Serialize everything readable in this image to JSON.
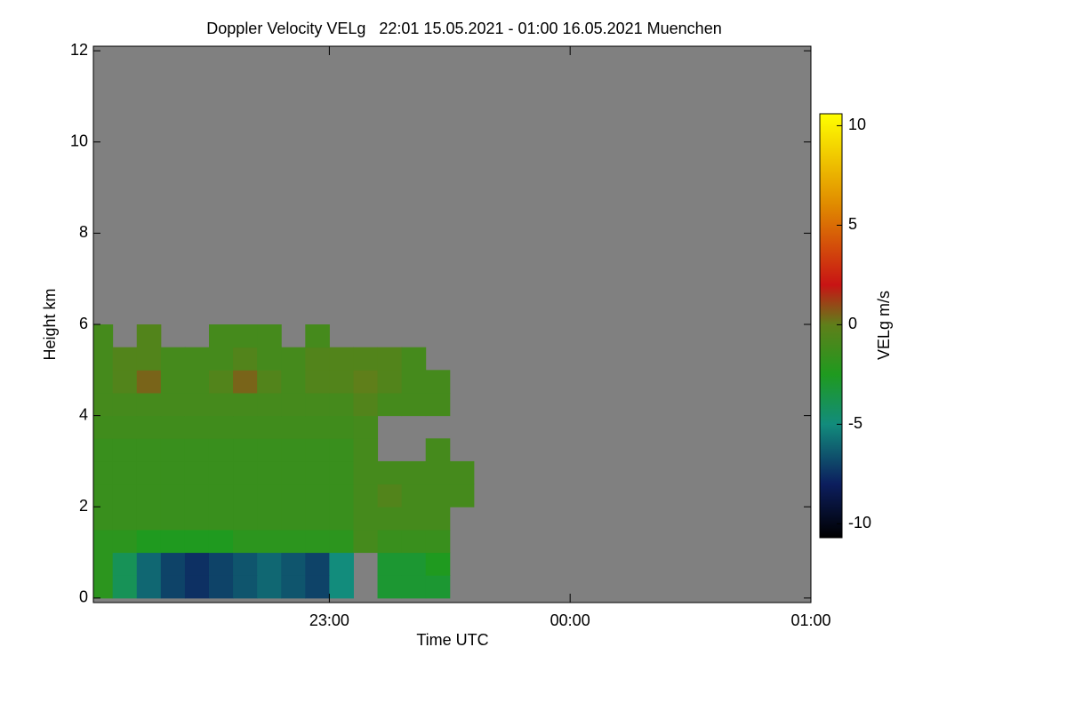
{
  "chart_data": {
    "type": "heatmap",
    "title": "Doppler Velocity VELg   22:01 15.05.2021 - 01:00 16.05.2021 Muenchen",
    "x_label": "Time UTC",
    "y_label": "Height km",
    "colorbar_label": "VELg m/s",
    "background_color": "#808080",
    "xlim": [
      22.02,
      25.0
    ],
    "xticks": [
      {
        "value": 23,
        "label": "23:00"
      },
      {
        "value": 24,
        "label": "00:00"
      },
      {
        "value": 25,
        "label": "01:00"
      }
    ],
    "ylim": [
      -0.1,
      12.1
    ],
    "yticks": [
      0,
      2,
      4,
      6,
      8,
      10,
      12
    ],
    "zlim": [
      -10.7,
      10.6
    ],
    "zticks": [
      -10,
      -5,
      0,
      5,
      10
    ],
    "colormap": [
      [
        -10.7,
        "#000000"
      ],
      [
        -8,
        "#0c1e5e"
      ],
      [
        -5,
        "#128c7c"
      ],
      [
        -2.5,
        "#1f9a1f"
      ],
      [
        0,
        "#5f7f1a"
      ],
      [
        2,
        "#c81414"
      ],
      [
        6,
        "#e08a00"
      ],
      [
        10.6,
        "#ffff00"
      ]
    ],
    "x_edges": [
      22.0,
      22.1,
      22.2,
      22.3,
      22.4,
      22.5,
      22.6,
      22.7,
      22.8,
      22.9,
      23.0,
      23.1,
      23.2,
      23.3,
      23.4,
      23.5,
      23.6,
      23.7,
      23.8,
      23.9,
      24.0,
      24.1,
      24.2,
      24.3,
      24.4,
      24.5,
      24.6,
      24.7,
      24.8,
      24.9,
      25.0
    ],
    "y_edges": [
      0,
      0.5,
      1,
      1.5,
      2,
      2.5,
      3,
      3.5,
      4,
      4.5,
      5,
      5.5,
      6
    ],
    "z": [
      [
        -2,
        -4,
        -6,
        -7,
        -7.5,
        -7,
        -6.5,
        -6,
        -6.5,
        -7,
        -5,
        null,
        -3,
        -3,
        -3,
        null,
        null,
        null,
        null,
        null,
        null,
        null,
        null,
        null,
        null,
        null,
        null,
        null,
        null,
        null
      ],
      [
        -2,
        -4,
        -6,
        -7,
        -7.5,
        -7,
        -6.5,
        -6,
        -6.5,
        -7,
        -5,
        null,
        -3,
        -3,
        -2.5,
        null,
        null,
        null,
        null,
        null,
        null,
        null,
        null,
        null,
        null,
        null,
        null,
        null,
        null,
        null
      ],
      [
        -2,
        -2,
        -2.5,
        -2.5,
        -2.5,
        -2.5,
        -2,
        -2,
        -2,
        -2,
        -2,
        -1,
        -1.5,
        -1.5,
        -1.5,
        null,
        null,
        null,
        null,
        null,
        null,
        null,
        null,
        null,
        null,
        null,
        null,
        null,
        null,
        null
      ],
      [
        -1.5,
        -1.5,
        -1.5,
        -1.5,
        -1.5,
        -1.5,
        -1.5,
        -1.5,
        -1.5,
        -1.5,
        -1.5,
        -1,
        -1,
        -1,
        -1,
        null,
        null,
        null,
        null,
        null,
        null,
        null,
        null,
        null,
        null,
        null,
        null,
        null,
        null,
        null
      ],
      [
        -1.5,
        -1.5,
        -1.5,
        -1.5,
        -1.5,
        -1.5,
        -1.5,
        -1.5,
        -1.5,
        -1.5,
        -1.5,
        -1,
        -0.5,
        -1,
        -1,
        -1,
        null,
        null,
        null,
        null,
        null,
        null,
        null,
        null,
        null,
        null,
        null,
        null,
        null,
        null
      ],
      [
        -1.5,
        -1.5,
        -1.5,
        -1.5,
        -1.5,
        -1.5,
        -1.5,
        -1.5,
        -1.5,
        -1.5,
        -1.5,
        -1,
        -1,
        -1,
        -1,
        -1,
        null,
        null,
        null,
        null,
        null,
        null,
        null,
        null,
        null,
        null,
        null,
        null,
        null,
        null
      ],
      [
        -1.5,
        -1.5,
        -1.5,
        -1.5,
        -1.5,
        -1.5,
        -1.5,
        -1.5,
        -1.5,
        -1.5,
        -1.5,
        -1,
        null,
        null,
        -1,
        null,
        null,
        null,
        null,
        null,
        null,
        null,
        null,
        null,
        null,
        null,
        null,
        null,
        null,
        null
      ],
      [
        -1.2,
        -1.2,
        -1.2,
        -1.2,
        -1.2,
        -1.2,
        -1.2,
        -1.2,
        -1.2,
        -1.2,
        -1.2,
        -1,
        null,
        null,
        null,
        null,
        null,
        null,
        null,
        null,
        null,
        null,
        null,
        null,
        null,
        null,
        null,
        null,
        null,
        null
      ],
      [
        -1,
        -1,
        -1,
        -1,
        -1,
        -1,
        -1,
        -1,
        -1,
        -1,
        -1,
        -0.5,
        -1,
        -1,
        -1,
        null,
        null,
        null,
        null,
        null,
        null,
        null,
        null,
        null,
        null,
        null,
        null,
        null,
        null,
        null
      ],
      [
        -1,
        -0.5,
        0.5,
        -1,
        -1,
        -0.5,
        0.5,
        -0.5,
        -1,
        -0.5,
        -0.5,
        0,
        -0.5,
        -1,
        -1,
        null,
        null,
        null,
        null,
        null,
        null,
        null,
        null,
        null,
        null,
        null,
        null,
        null,
        null,
        null
      ],
      [
        -1,
        -0.5,
        -0.5,
        -1,
        -1,
        -1,
        -0.5,
        -1,
        -1,
        -0.5,
        -0.5,
        -0.5,
        -0.5,
        -1,
        null,
        null,
        null,
        null,
        null,
        null,
        null,
        null,
        null,
        null,
        null,
        null,
        null,
        null,
        null,
        null
      ],
      [
        -1,
        null,
        -0.5,
        null,
        null,
        -1,
        -1,
        -1,
        null,
        -1,
        null,
        null,
        null,
        null,
        null,
        null,
        null,
        null,
        null,
        null,
        null,
        null,
        null,
        null,
        null,
        null,
        null,
        null,
        null,
        null
      ]
    ]
  }
}
